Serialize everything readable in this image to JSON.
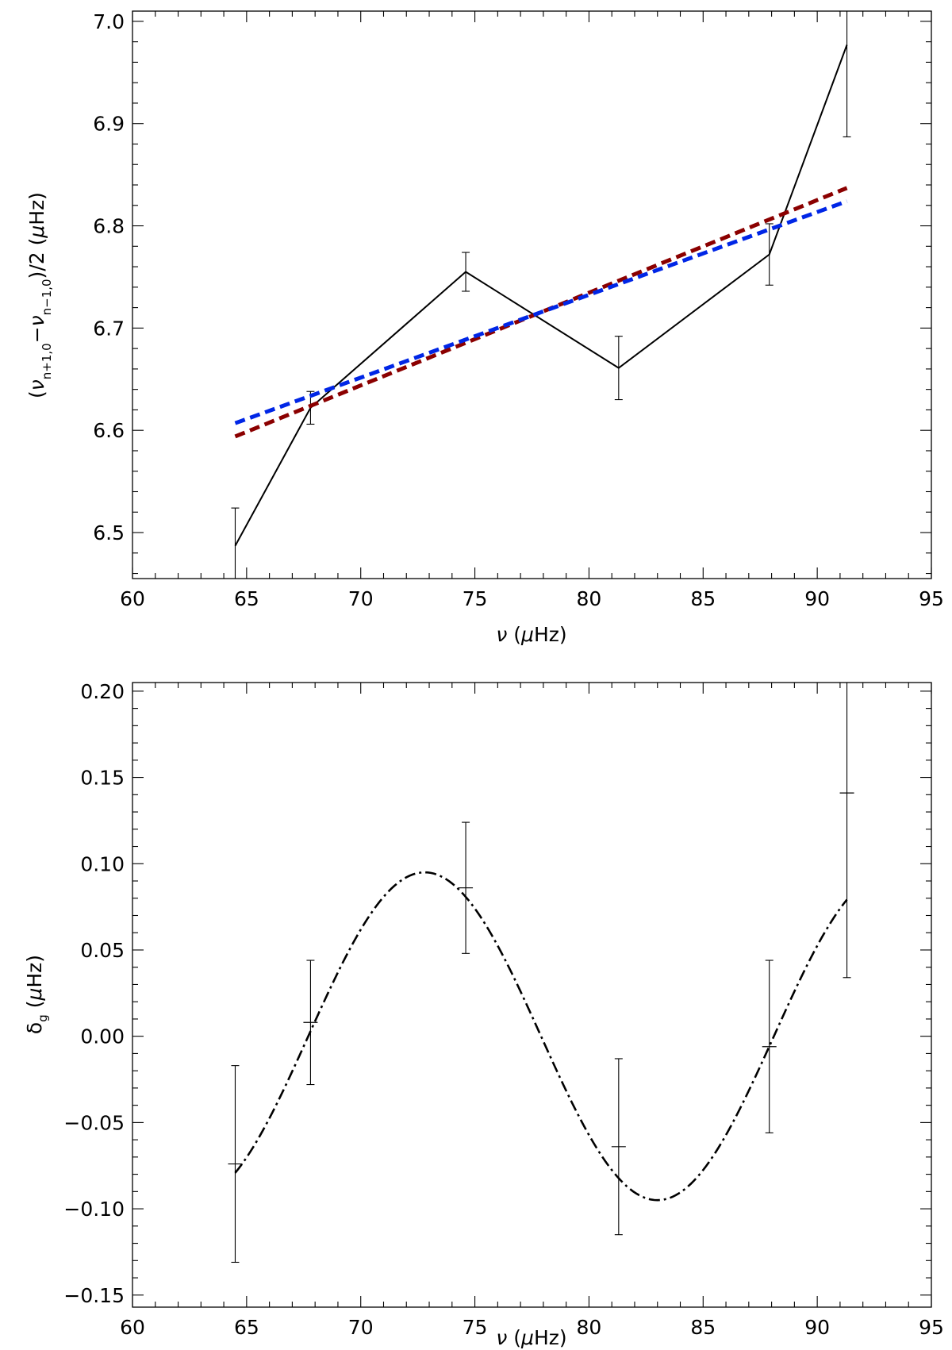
{
  "chart_data": [
    {
      "type": "line",
      "xlabel": "ν (μHz)",
      "ylabel": "(ν_{n+1,0}−ν_{n−1,0})/2 (μHz)",
      "xlim": [
        60,
        95
      ],
      "ylim": [
        6.455,
        7.01
      ],
      "x_ticks": [
        "60",
        "65",
        "70",
        "75",
        "80",
        "85",
        "90",
        "95"
      ],
      "y_ticks": [
        "6.5",
        "6.6",
        "6.7",
        "6.8",
        "6.9",
        "7.0"
      ],
      "grid": false,
      "series": [
        {
          "style": "solid-with-errorbars",
          "color": "#000000",
          "x": [
            64.5,
            67.8,
            74.6,
            81.3,
            87.9,
            91.3
          ],
          "y": [
            6.487,
            6.622,
            6.755,
            6.661,
            6.772,
            6.977
          ],
          "err": [
            0.037,
            0.016,
            0.019,
            0.031,
            0.03,
            0.09
          ]
        },
        {
          "style": "dashed",
          "color": "#8b0000",
          "x": [
            64.5,
            91.3
          ],
          "y": [
            6.594,
            6.837
          ]
        },
        {
          "style": "dashed",
          "color": "#0026e6",
          "x": [
            64.5,
            91.3
          ],
          "y": [
            6.607,
            6.824
          ]
        }
      ]
    },
    {
      "type": "scatter",
      "xlabel": "ν (μHz)",
      "ylabel": "δ_g (μHz)",
      "xlim": [
        60,
        95
      ],
      "ylim": [
        -0.157,
        0.205
      ],
      "x_ticks": [
        "60",
        "65",
        "70",
        "75",
        "80",
        "85",
        "90",
        "95"
      ],
      "y_ticks": [
        "−0.15",
        "−0.10",
        "−0.05",
        "0.00",
        "0.05",
        "0.10",
        "0.15",
        "0.20"
      ],
      "y_tick_values": [
        -0.15,
        -0.1,
        -0.05,
        0.0,
        0.05,
        0.1,
        0.15,
        0.2
      ],
      "grid": false,
      "series": [
        {
          "style": "plus-with-errorbars",
          "color": "#000000",
          "x": [
            64.5,
            67.8,
            74.6,
            81.3,
            87.9,
            91.3
          ],
          "y": [
            -0.074,
            0.008,
            0.086,
            -0.064,
            -0.006,
            0.141
          ],
          "err": [
            0.057,
            0.036,
            0.038,
            0.051,
            0.05,
            0.107
          ]
        },
        {
          "style": "dash-dot-curve",
          "color": "#000000",
          "model": "sinusoid",
          "x_range": [
            64.5,
            91.3
          ],
          "amplitude": 0.095,
          "period": 20.4,
          "peak_x": 72.8
        }
      ]
    }
  ]
}
